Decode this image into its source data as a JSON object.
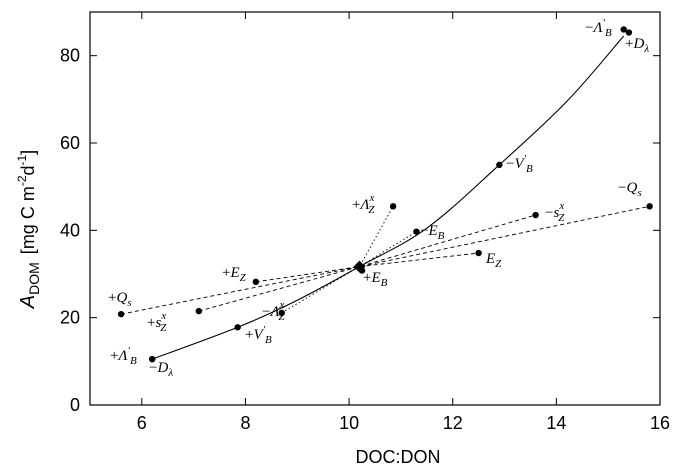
{
  "chart_data": {
    "type": "scatter",
    "title": "",
    "xlabel": "DOC:DON",
    "ylabel": "A_DOM [mg C m^-2 d^-1]",
    "ylabel_parts": {
      "symbol": "A",
      "sub": "DOM",
      "units_open": "[mg C m",
      "exp1": "-2",
      "mid": "d",
      "exp2": "-1",
      "units_close": "]"
    },
    "xlim": [
      5,
      16
    ],
    "ylim": [
      0,
      90
    ],
    "x_ticks": [
      "6",
      "8",
      "10",
      "12",
      "14",
      "16"
    ],
    "y_ticks": [
      "0",
      "20",
      "40",
      "60",
      "80"
    ],
    "grid": false,
    "center_point": {
      "x": 10.2,
      "y": 31.7
    },
    "series": [
      {
        "style": "solid",
        "points": [
          {
            "label": "+Λ'B",
            "x": 6.2,
            "y": 10.5
          },
          {
            "label": "-Dλ",
            "x": 6.2,
            "y": 10.5
          },
          {
            "label": "+V'B",
            "x": 7.85,
            "y": 17.8
          },
          {
            "label": "-V'B",
            "x": 12.9,
            "y": 55.0
          },
          {
            "label": "-Λ'B",
            "x": 15.3,
            "y": 86.0
          },
          {
            "label": "+Dλ",
            "x": 15.4,
            "y": 85.3
          }
        ],
        "curve": [
          [
            6.2,
            10.5
          ],
          [
            7.85,
            17.8
          ],
          [
            9.0,
            24.0
          ],
          [
            10.2,
            31.7
          ],
          [
            11.5,
            40.5
          ],
          [
            12.9,
            55.0
          ],
          [
            14.2,
            69.5
          ],
          [
            15.3,
            84.5
          ]
        ]
      },
      {
        "style": "dashed",
        "points": [
          {
            "label": "+Qs",
            "x": 5.6,
            "y": 20.8
          },
          {
            "label": "-Qs",
            "x": 15.8,
            "y": 45.5
          }
        ]
      },
      {
        "style": "dashed",
        "points": [
          {
            "label": "+sZx",
            "x": 7.1,
            "y": 21.5
          },
          {
            "label": "-sZx",
            "x": 13.6,
            "y": 43.5
          }
        ]
      },
      {
        "style": "dashed",
        "points": [
          {
            "label": "+EZ",
            "x": 8.2,
            "y": 28.2
          },
          {
            "label": "EZ",
            "x": 12.5,
            "y": 34.8
          }
        ]
      },
      {
        "style": "dotted",
        "points": [
          {
            "label": "-ΛZx",
            "x": 8.7,
            "y": 21.1
          },
          {
            "label": "+ΛZx",
            "x": 10.85,
            "y": 45.5
          }
        ]
      },
      {
        "style": "dotted",
        "points": [
          {
            "label": "+EB",
            "x": 10.25,
            "y": 30.8
          },
          {
            "label": "-EB",
            "x": 11.3,
            "y": 39.7
          }
        ]
      }
    ],
    "annotations": [
      {
        "id": "lambda_b_plus",
        "text": "+Λ'B",
        "x": 6.2,
        "y": 10.5
      },
      {
        "id": "d_lambda_minus",
        "text": "-Dλ",
        "x": 6.2,
        "y": 10.5
      },
      {
        "id": "v_b_plus",
        "text": "+V'B",
        "x": 7.85,
        "y": 17.8
      },
      {
        "id": "lambda_zx_minus",
        "text": "-ΛZx",
        "x": 8.7,
        "y": 21.1
      },
      {
        "id": "q_s_plus",
        "text": "+Qs",
        "x": 5.6,
        "y": 20.8
      },
      {
        "id": "s_zx_plus",
        "text": "+sZx",
        "x": 7.1,
        "y": 21.5
      },
      {
        "id": "e_z_plus",
        "text": "+EZ",
        "x": 8.2,
        "y": 28.2
      },
      {
        "id": "lambda_zx_plus",
        "text": "+ΛZx",
        "x": 10.85,
        "y": 45.5
      },
      {
        "id": "e_b_plus",
        "text": "+EB",
        "x": 10.25,
        "y": 30.8
      },
      {
        "id": "e_b_minus",
        "text": "-EB",
        "x": 11.3,
        "y": 39.7
      },
      {
        "id": "e_z_minus",
        "text": "EZ",
        "x": 12.5,
        "y": 34.8
      },
      {
        "id": "v_b_minus",
        "text": "-V'B",
        "x": 12.9,
        "y": 55.0
      },
      {
        "id": "s_zx_minus",
        "text": "-sZx",
        "x": 13.6,
        "y": 43.5
      },
      {
        "id": "q_s_minus",
        "text": "-Qs",
        "x": 15.8,
        "y": 45.5
      },
      {
        "id": "lambda_b_minus",
        "text": "-Λ'B",
        "x": 15.3,
        "y": 86.0
      },
      {
        "id": "d_lambda_plus",
        "text": "+Dλ",
        "x": 15.4,
        "y": 85.3
      }
    ]
  }
}
